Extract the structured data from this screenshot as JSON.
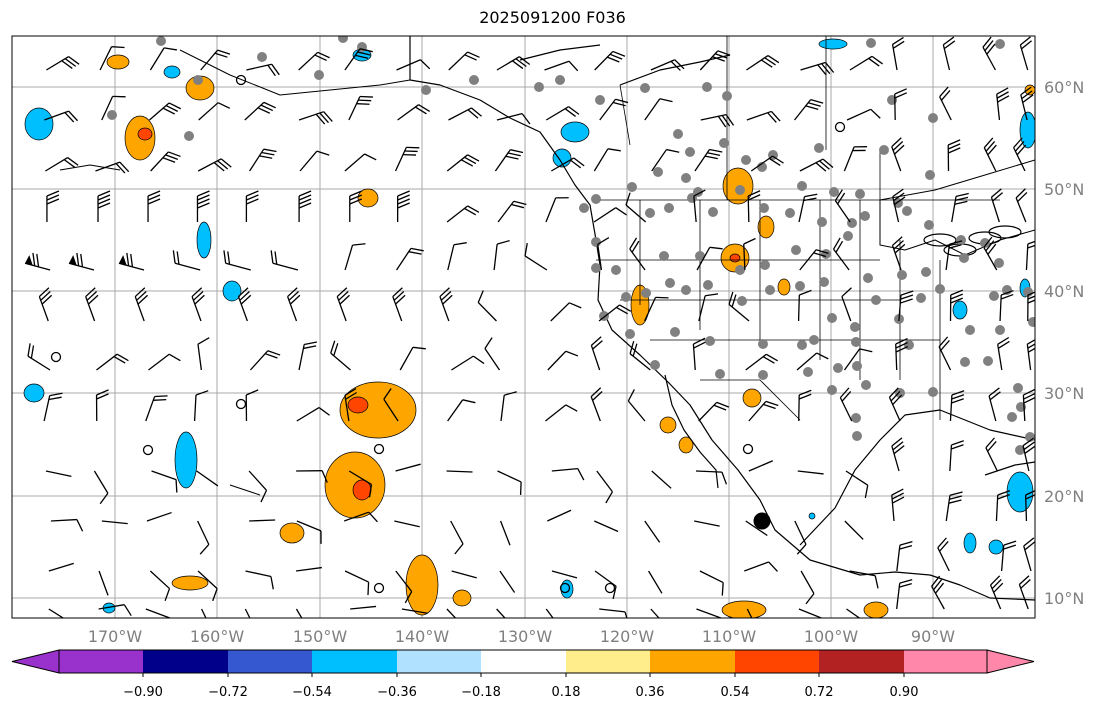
{
  "title": "2025091200 F036",
  "lat_labels": [
    "60°N",
    "50°N",
    "40°N",
    "30°N",
    "20°N",
    "10°N"
  ],
  "lon_labels": [
    "170°W",
    "160°W",
    "150°W",
    "140°W",
    "130°W",
    "120°W",
    "110°W",
    "100°W",
    "90°W"
  ],
  "colorbar": {
    "ticks": [
      "−0.90",
      "−0.72",
      "−0.54",
      "−0.36",
      "−0.18",
      "0.18",
      "0.36",
      "0.54",
      "0.72",
      "0.90"
    ],
    "colors": [
      "#9932cc",
      "#00008b",
      "#3558d0",
      "#00bfff",
      "#b0e2ff",
      "#ffffff",
      "#ffec8b",
      "#ffa500",
      "#ff4500",
      "#b22222",
      "#ff88aa"
    ]
  },
  "colors": {
    "grid": "#a9a9a9",
    "coast": "#000000",
    "station": "#808080",
    "warm": "#ffa500",
    "warm_core": "#ff4500",
    "cool": "#00bfff"
  }
}
